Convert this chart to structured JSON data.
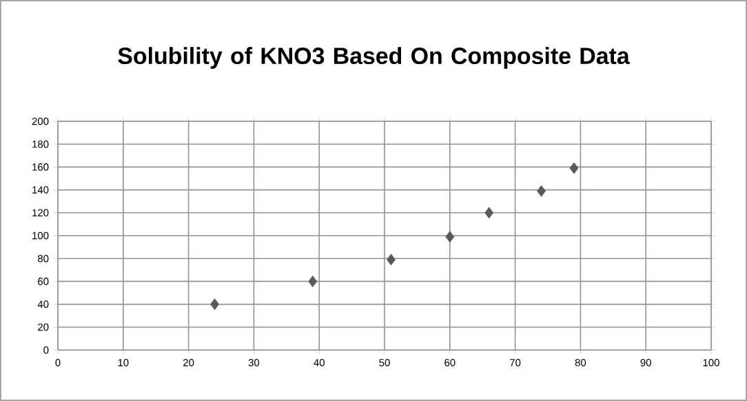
{
  "chart_data": {
    "type": "scatter",
    "title": "Solubility of KNO3 Based On Composite Data",
    "series": [
      {
        "color": "#595959",
        "x": [
          24,
          39,
          51,
          60,
          66,
          74,
          79
        ],
        "values": [
          40,
          60,
          79,
          99,
          120,
          139,
          159
        ]
      }
    ],
    "xlim": [
      0,
      100
    ],
    "xticks": [
      0,
      10,
      20,
      30,
      40,
      50,
      60,
      70,
      80,
      90,
      100
    ],
    "ylim": [
      0,
      200
    ],
    "yticks": [
      0,
      20,
      40,
      60,
      80,
      100,
      120,
      140,
      160,
      180,
      200
    ],
    "grid": true,
    "marker": "diamond"
  }
}
